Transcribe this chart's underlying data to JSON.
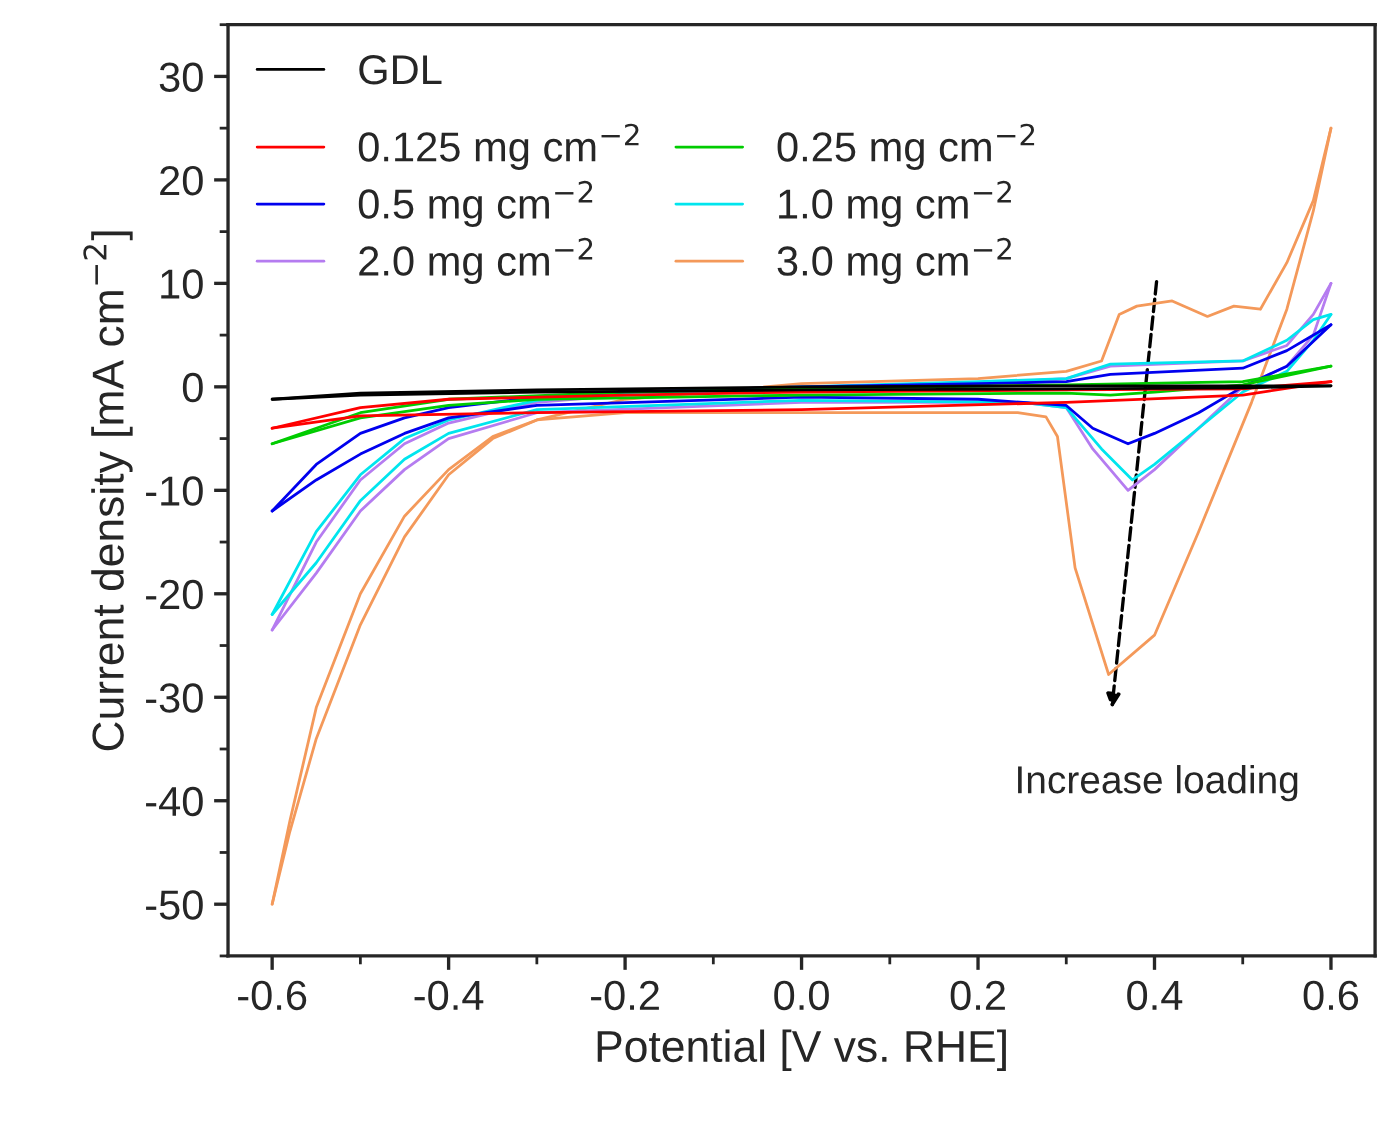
{
  "chart_data": {
    "type": "line",
    "xlabel": "Potential [V vs. RHE]",
    "ylabel": "Current density [mA cm$^{−2}$]",
    "xlim": [
      -0.65,
      0.65
    ],
    "ylim": [
      -55,
      35
    ],
    "xticks": [
      {
        "value": -0.6,
        "label": "-0.6"
      },
      {
        "value": -0.4,
        "label": "-0.4"
      },
      {
        "value": -0.2,
        "label": "-0.2"
      },
      {
        "value": 0,
        "label": "0.0"
      },
      {
        "value": 0.2,
        "label": "0.2"
      },
      {
        "value": 0.4,
        "label": "0.4"
      },
      {
        "value": 0.6,
        "label": "0.6"
      }
    ],
    "yticks": [
      -50,
      -40,
      -30,
      -20,
      -10,
      0,
      10,
      20,
      30
    ],
    "grid": false,
    "legend": "top left",
    "line_style": "solid",
    "marker": "none",
    "series": [
      {
        "name": "GDL",
        "color": "#000000",
        "x": [
          -0.6,
          -0.5,
          -0.3,
          0.0,
          0.3,
          0.5,
          0.6,
          0.5,
          0.3,
          0.0,
          -0.3,
          -0.5,
          -0.6
        ],
        "values": [
          -1.2,
          -0.6,
          -0.3,
          0.0,
          0.1,
          0.1,
          0.1,
          -0.1,
          -0.2,
          -0.3,
          -0.5,
          -0.8,
          -1.2
        ]
      },
      {
        "name": "0.125 mg cm$^{−2}$",
        "color": "#ff0000",
        "x": [
          -0.6,
          -0.5,
          -0.4,
          -0.2,
          0.0,
          0.3,
          0.5,
          0.6,
          0.5,
          0.3,
          0.0,
          -0.3,
          -0.5,
          -0.6
        ],
        "values": [
          -4.0,
          -2.0,
          -1.2,
          -0.8,
          -0.5,
          -0.3,
          -0.2,
          0.5,
          -0.8,
          -1.5,
          -2.2,
          -2.5,
          -2.8,
          -4.0
        ]
      },
      {
        "name": "0.25 mg cm$^{−2}$",
        "color": "#00cc00",
        "x": [
          -0.6,
          -0.5,
          -0.4,
          -0.2,
          0.0,
          0.3,
          0.5,
          0.6,
          0.5,
          0.4,
          0.35,
          0.3,
          0.0,
          -0.3,
          -0.4,
          -0.5,
          -0.6
        ],
        "values": [
          -5.5,
          -2.5,
          -1.2,
          -0.5,
          -0.2,
          0.2,
          0.5,
          2.0,
          0.2,
          -0.5,
          -0.8,
          -0.6,
          -0.8,
          -1.2,
          -1.8,
          -3.0,
          -5.5
        ]
      },
      {
        "name": "0.5 mg cm$^{−2}$",
        "color": "#0000ee",
        "x": [
          -0.6,
          -0.55,
          -0.5,
          -0.45,
          -0.4,
          -0.3,
          -0.2,
          0.0,
          0.2,
          0.3,
          0.35,
          0.5,
          0.55,
          0.6,
          0.55,
          0.5,
          0.45,
          0.4,
          0.37,
          0.33,
          0.3,
          0.2,
          0.0,
          -0.3,
          -0.4,
          -0.45,
          -0.5,
          -0.55,
          -0.6
        ],
        "values": [
          -12.0,
          -7.5,
          -4.5,
          -3.0,
          -2.0,
          -1.0,
          -0.5,
          0.0,
          0.3,
          0.5,
          1.2,
          1.8,
          3.5,
          6.0,
          2.0,
          0.0,
          -2.5,
          -4.5,
          -5.5,
          -4.0,
          -1.8,
          -1.2,
          -1.0,
          -1.8,
          -3.0,
          -4.5,
          -6.5,
          -9.0,
          -12.0
        ]
      },
      {
        "name": "1.0 mg cm$^{−2}$",
        "color": "#00e5ee",
        "x": [
          -0.6,
          -0.55,
          -0.5,
          -0.45,
          -0.4,
          -0.3,
          -0.2,
          0.0,
          0.2,
          0.3,
          0.35,
          0.5,
          0.55,
          0.58,
          0.6,
          0.58,
          0.55,
          0.5,
          0.45,
          0.4,
          0.375,
          0.34,
          0.3,
          0.25,
          0.0,
          -0.3,
          -0.4,
          -0.45,
          -0.5,
          -0.55,
          -0.6
        ],
        "values": [
          -22.0,
          -14.0,
          -8.5,
          -5.0,
          -3.2,
          -1.3,
          -0.6,
          0.0,
          0.5,
          0.8,
          2.2,
          2.5,
          4.5,
          6.5,
          7.0,
          4.5,
          1.5,
          -0.5,
          -4.0,
          -7.5,
          -9.0,
          -6.0,
          -2.0,
          -1.5,
          -1.3,
          -2.2,
          -4.5,
          -7.0,
          -11.0,
          -17.0,
          -22.0
        ]
      },
      {
        "name": "2.0 mg cm$^{−2}$",
        "color": "#b57cf0",
        "x": [
          -0.6,
          -0.55,
          -0.5,
          -0.45,
          -0.4,
          -0.3,
          -0.2,
          0.0,
          0.2,
          0.3,
          0.35,
          0.5,
          0.55,
          0.58,
          0.6,
          0.58,
          0.55,
          0.5,
          0.45,
          0.4,
          0.37,
          0.33,
          0.3,
          0.25,
          0.0,
          -0.3,
          -0.4,
          -0.45,
          -0.5,
          -0.55,
          -0.6
        ],
        "values": [
          -23.5,
          -15.0,
          -9.0,
          -5.5,
          -3.5,
          -1.5,
          -0.8,
          -0.3,
          0.3,
          0.8,
          2.0,
          2.5,
          4.0,
          7.0,
          10.0,
          5.0,
          2.0,
          0.0,
          -4.0,
          -8.0,
          -10.0,
          -6.0,
          -2.0,
          -1.5,
          -1.5,
          -2.5,
          -5.0,
          -8.0,
          -12.0,
          -18.0,
          -23.5
        ]
      },
      {
        "name": "3.0 mg cm$^{−2}$",
        "color": "#f4995a",
        "x": [
          -0.6,
          -0.58,
          -0.55,
          -0.5,
          -0.45,
          -0.4,
          -0.35,
          -0.3,
          -0.2,
          0.0,
          0.2,
          0.3,
          0.34,
          0.36,
          0.38,
          0.42,
          0.46,
          0.49,
          0.52,
          0.55,
          0.58,
          0.6,
          0.58,
          0.55,
          0.51,
          0.45,
          0.4,
          0.348,
          0.31,
          0.29,
          0.277,
          0.245,
          0.0,
          -0.2,
          -0.3,
          -0.35,
          -0.4,
          -0.45,
          -0.5,
          -0.55,
          -0.58,
          -0.6
        ],
        "values": [
          -50.0,
          -43.0,
          -34.0,
          -23.0,
          -14.5,
          -8.5,
          -5.0,
          -3.2,
          -1.2,
          0.3,
          0.8,
          1.5,
          2.5,
          7.0,
          7.8,
          8.3,
          6.8,
          7.8,
          7.5,
          12.0,
          18.0,
          25.0,
          17.0,
          7.5,
          -1.5,
          -14.0,
          -24.0,
          -27.8,
          -17.5,
          -4.8,
          -2.9,
          -2.5,
          -2.5,
          -2.5,
          -3.2,
          -4.8,
          -8.0,
          -12.5,
          -20.0,
          -31.0,
          -42.0,
          -50.0
        ]
      }
    ],
    "annotations": [
      "Increase loading"
    ]
  }
}
